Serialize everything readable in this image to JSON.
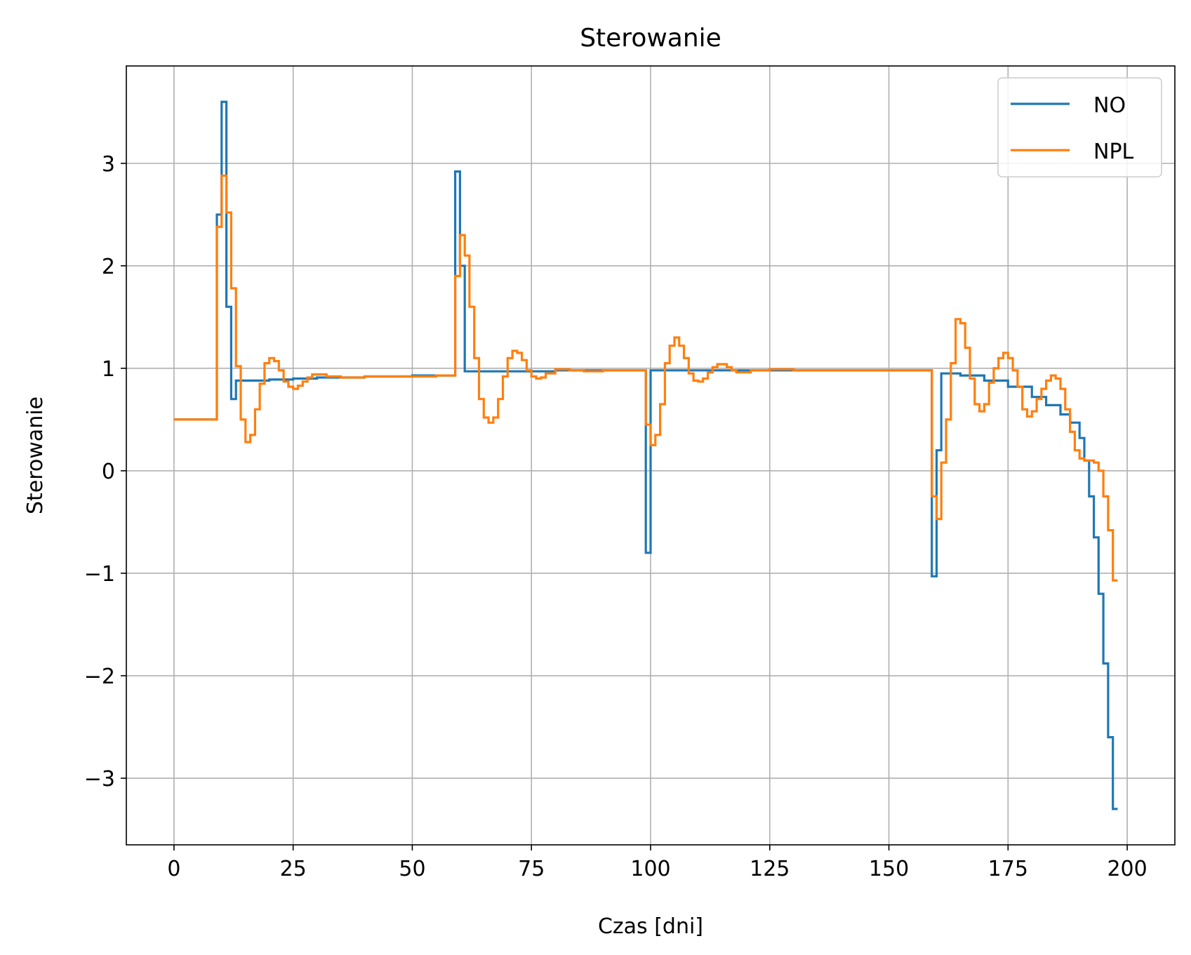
{
  "chart_data": {
    "type": "line",
    "title": "Sterowanie",
    "xlabel": "Czas [dni]",
    "ylabel": "Sterowanie",
    "xlim": [
      -10,
      210
    ],
    "ylim": [
      -3.65,
      3.95
    ],
    "xticks": [
      0,
      25,
      50,
      75,
      100,
      125,
      150,
      175,
      200
    ],
    "yticks": [
      -3,
      -2,
      -1,
      0,
      1,
      2,
      3
    ],
    "ytick_labels": [
      "−3",
      "−2",
      "−1",
      "0",
      "1",
      "2",
      "3"
    ],
    "grid": true,
    "legend_position": "top-right",
    "step": "post",
    "series": [
      {
        "name": "NO",
        "color": "#1f77b4",
        "x": [
          0,
          9,
          10,
          11,
          12,
          13,
          15,
          20,
          25,
          30,
          40,
          50,
          58,
          59,
          60,
          61,
          65,
          70,
          80,
          90,
          99,
          100,
          101,
          110,
          120,
          130,
          140,
          150,
          159,
          160,
          161,
          165,
          170,
          175,
          180,
          183,
          186,
          188,
          190,
          191,
          192,
          193,
          194,
          195,
          196,
          197,
          198
        ],
        "y": [
          0.5,
          2.5,
          3.6,
          1.6,
          0.7,
          0.88,
          0.88,
          0.89,
          0.9,
          0.91,
          0.92,
          0.93,
          0.93,
          2.92,
          2.0,
          0.97,
          0.97,
          0.97,
          0.98,
          0.98,
          -0.8,
          0.98,
          0.98,
          0.98,
          0.98,
          0.98,
          0.98,
          0.98,
          -1.03,
          0.2,
          0.95,
          0.93,
          0.88,
          0.82,
          0.72,
          0.64,
          0.55,
          0.47,
          0.32,
          0.1,
          -0.25,
          -0.65,
          -1.2,
          -1.88,
          -2.6,
          -3.3,
          -3.3
        ]
      },
      {
        "name": "NPL",
        "color": "#ff7f0e",
        "x": [
          0,
          9,
          10,
          11,
          12,
          13,
          14,
          15,
          16,
          17,
          18,
          19,
          20,
          21,
          22,
          23,
          24,
          25,
          26,
          27,
          28,
          29,
          30,
          32,
          35,
          40,
          45,
          50,
          55,
          59,
          60,
          61,
          62,
          63,
          64,
          65,
          66,
          67,
          68,
          69,
          70,
          71,
          72,
          73,
          74,
          75,
          76,
          77,
          78,
          80,
          83,
          86,
          90,
          95,
          99,
          100,
          101,
          102,
          103,
          104,
          105,
          106,
          107,
          108,
          109,
          110,
          111,
          112,
          113,
          114,
          115,
          116,
          117,
          118,
          119,
          121,
          125,
          130,
          135,
          140,
          150,
          159,
          160,
          161,
          162,
          163,
          164,
          165,
          166,
          167,
          168,
          169,
          170,
          171,
          172,
          173,
          174,
          175,
          176,
          177,
          178,
          179,
          180,
          181,
          182,
          183,
          184,
          185,
          186,
          187,
          188,
          189,
          190,
          191,
          192,
          193,
          194,
          195,
          196,
          197,
          198
        ],
        "y": [
          0.5,
          2.38,
          2.88,
          2.52,
          1.78,
          1.02,
          0.5,
          0.28,
          0.35,
          0.6,
          0.85,
          1.05,
          1.1,
          1.07,
          0.98,
          0.87,
          0.82,
          0.8,
          0.83,
          0.87,
          0.91,
          0.94,
          0.94,
          0.92,
          0.91,
          0.92,
          0.92,
          0.92,
          0.93,
          1.9,
          2.3,
          2.1,
          1.6,
          1.1,
          0.7,
          0.52,
          0.47,
          0.52,
          0.7,
          0.92,
          1.1,
          1.17,
          1.15,
          1.08,
          0.98,
          0.92,
          0.9,
          0.91,
          0.95,
          0.99,
          0.98,
          0.97,
          0.98,
          0.98,
          0.45,
          0.25,
          0.35,
          0.65,
          1.05,
          1.22,
          1.3,
          1.22,
          1.1,
          0.95,
          0.88,
          0.87,
          0.9,
          0.96,
          1.01,
          1.04,
          1.04,
          1.01,
          0.98,
          0.96,
          0.96,
          0.98,
          0.99,
          0.98,
          0.98,
          0.98,
          0.98,
          -0.25,
          -0.47,
          0.08,
          0.5,
          1.05,
          1.48,
          1.44,
          1.2,
          0.9,
          0.65,
          0.58,
          0.65,
          0.86,
          1.0,
          1.1,
          1.15,
          1.1,
          0.98,
          0.82,
          0.6,
          0.53,
          0.58,
          0.7,
          0.8,
          0.88,
          0.93,
          0.9,
          0.8,
          0.6,
          0.38,
          0.2,
          0.12,
          0.1,
          0.1,
          0.08,
          0.0,
          -0.25,
          -0.58,
          -1.07,
          -1.07
        ]
      }
    ]
  }
}
